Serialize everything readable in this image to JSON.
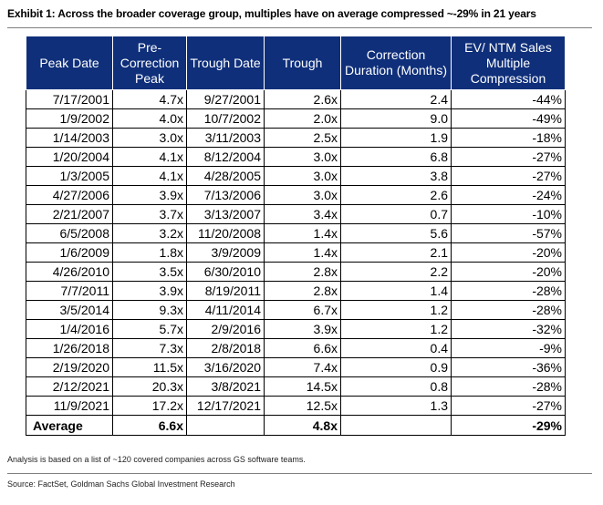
{
  "title": "Exhibit 1: Across the broader coverage group, multiples have on average compressed ~-29% in 21 years",
  "columns": [
    "Peak Date",
    "Pre-Correction Peak",
    "Trough Date",
    "Trough",
    "Correction Duration (Months)",
    "EV/ NTM Sales Multiple Compression"
  ],
  "rows": [
    [
      "7/17/2001",
      "4.7x",
      "9/27/2001",
      "2.6x",
      "2.4",
      "-44%"
    ],
    [
      "1/9/2002",
      "4.0x",
      "10/7/2002",
      "2.0x",
      "9.0",
      "-49%"
    ],
    [
      "1/14/2003",
      "3.0x",
      "3/11/2003",
      "2.5x",
      "1.9",
      "-18%"
    ],
    [
      "1/20/2004",
      "4.1x",
      "8/12/2004",
      "3.0x",
      "6.8",
      "-27%"
    ],
    [
      "1/3/2005",
      "4.1x",
      "4/28/2005",
      "3.0x",
      "3.8",
      "-27%"
    ],
    [
      "4/27/2006",
      "3.9x",
      "7/13/2006",
      "3.0x",
      "2.6",
      "-24%"
    ],
    [
      "2/21/2007",
      "3.7x",
      "3/13/2007",
      "3.4x",
      "0.7",
      "-10%"
    ],
    [
      "6/5/2008",
      "3.2x",
      "11/20/2008",
      "1.4x",
      "5.6",
      "-57%"
    ],
    [
      "1/6/2009",
      "1.8x",
      "3/9/2009",
      "1.4x",
      "2.1",
      "-20%"
    ],
    [
      "4/26/2010",
      "3.5x",
      "6/30/2010",
      "2.8x",
      "2.2",
      "-20%"
    ],
    [
      "7/7/2011",
      "3.9x",
      "8/19/2011",
      "2.8x",
      "1.4",
      "-28%"
    ],
    [
      "3/5/2014",
      "9.3x",
      "4/11/2014",
      "6.7x",
      "1.2",
      "-28%"
    ],
    [
      "1/4/2016",
      "5.7x",
      "2/9/2016",
      "3.9x",
      "1.2",
      "-32%"
    ],
    [
      "1/26/2018",
      "7.3x",
      "2/8/2018",
      "6.6x",
      "0.4",
      "-9%"
    ],
    [
      "2/19/2020",
      "11.5x",
      "3/16/2020",
      "7.4x",
      "0.9",
      "-36%"
    ],
    [
      "2/12/2021",
      "20.3x",
      "3/8/2021",
      "14.5x",
      "0.8",
      "-28%"
    ],
    [
      "11/9/2021",
      "17.2x",
      "12/17/2021",
      "12.5x",
      "1.3",
      "-27%"
    ]
  ],
  "average": {
    "label": "Average",
    "pre_peak": "6.6x",
    "trough_date": "",
    "trough": "4.8x",
    "duration": "",
    "compression": "-29%"
  },
  "note": "Analysis is based on a list of ~120 covered companies across GS software teams.",
  "source": "Source: FactSet, Goldman Sachs Global Investment Research",
  "colors": {
    "header_bg": "#0f2f7a",
    "header_text": "#ffffff"
  }
}
